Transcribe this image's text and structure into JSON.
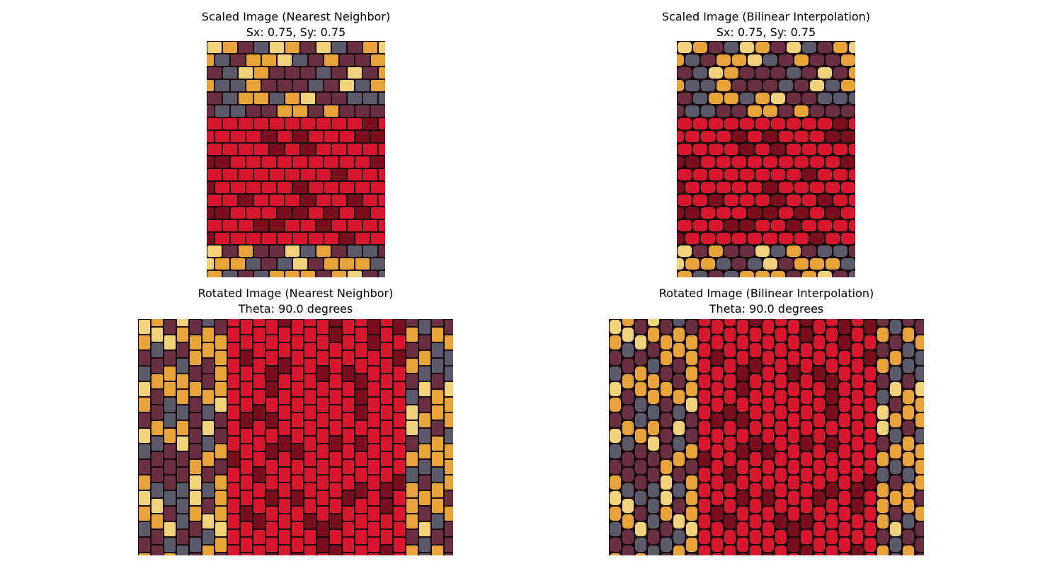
{
  "panels": [
    {
      "title": "Scaled Image (Nearest Neighbor)",
      "subtitle": "Sx: 0.75, Sy: 0.75",
      "orientation": "horizontal",
      "smooth": false
    },
    {
      "title": "Scaled Image (Bilinear Interpolation)",
      "subtitle": "Sx: 0.75, Sy: 0.75",
      "orientation": "horizontal",
      "smooth": true
    },
    {
      "title": "Rotated Image (Nearest Neighbor)",
      "subtitle": "Theta: 90.0 degrees",
      "orientation": "vertical",
      "smooth": false
    },
    {
      "title": "Rotated Image (Bilinear Interpolation)",
      "subtitle": "Theta: 90.0 degrees",
      "orientation": "vertical",
      "smooth": true
    }
  ],
  "colors": {
    "red_kernel": "#d8172f",
    "red_dark": "#7a0e1c",
    "gold_kernel": "#e8a43a",
    "purple_kernel": "#6b3040",
    "slate_kernel": "#5a5a6a",
    "cream_kernel": "#f2d27a",
    "gap": "#1a0b0e"
  }
}
